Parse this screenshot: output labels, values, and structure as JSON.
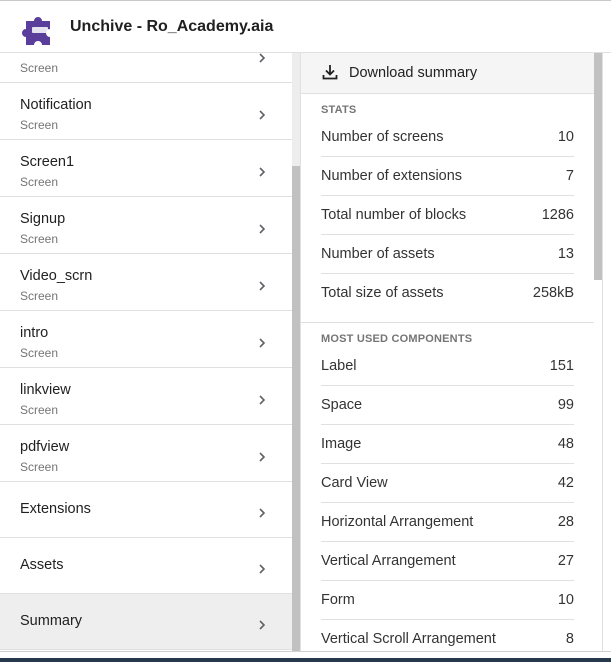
{
  "header": {
    "title": "Unchive - Ro_Academy.aia",
    "logo_icon": "puzzle-piece-icon",
    "logo_color": "#5b3e9b"
  },
  "screens": [
    {
      "name": "",
      "type": "Screen"
    },
    {
      "name": "Notification",
      "type": "Screen"
    },
    {
      "name": "Screen1",
      "type": "Screen"
    },
    {
      "name": "Signup",
      "type": "Screen"
    },
    {
      "name": "Video_scrn",
      "type": "Screen"
    },
    {
      "name": "intro",
      "type": "Screen"
    },
    {
      "name": "linkview",
      "type": "Screen"
    },
    {
      "name": "pdfview",
      "type": "Screen"
    }
  ],
  "sections": [
    {
      "name": "Extensions"
    },
    {
      "name": "Assets"
    },
    {
      "name": "Summary"
    }
  ],
  "summary": {
    "download_label": "Download summary",
    "stats_header": "STATS",
    "stats": [
      {
        "label": "Number of screens",
        "value": "10"
      },
      {
        "label": "Number of extensions",
        "value": "7"
      },
      {
        "label": "Total number of blocks",
        "value": "1286"
      },
      {
        "label": "Number of assets",
        "value": "13"
      },
      {
        "label": "Total size of assets",
        "value": "258kB"
      }
    ],
    "components_header": "MOST USED COMPONENTS",
    "components": [
      {
        "label": "Label",
        "value": "151"
      },
      {
        "label": "Space",
        "value": "99"
      },
      {
        "label": "Image",
        "value": "48"
      },
      {
        "label": "Card View",
        "value": "42"
      },
      {
        "label": "Horizontal Arrangement",
        "value": "28"
      },
      {
        "label": "Vertical Arrangement",
        "value": "27"
      },
      {
        "label": "Form",
        "value": "10"
      },
      {
        "label": "Vertical Scroll Arrangement",
        "value": "8"
      }
    ]
  },
  "colors": {
    "selected_bg": "#eeeeee",
    "divider": "#e0e0e0",
    "secondary_text": "#757575"
  }
}
